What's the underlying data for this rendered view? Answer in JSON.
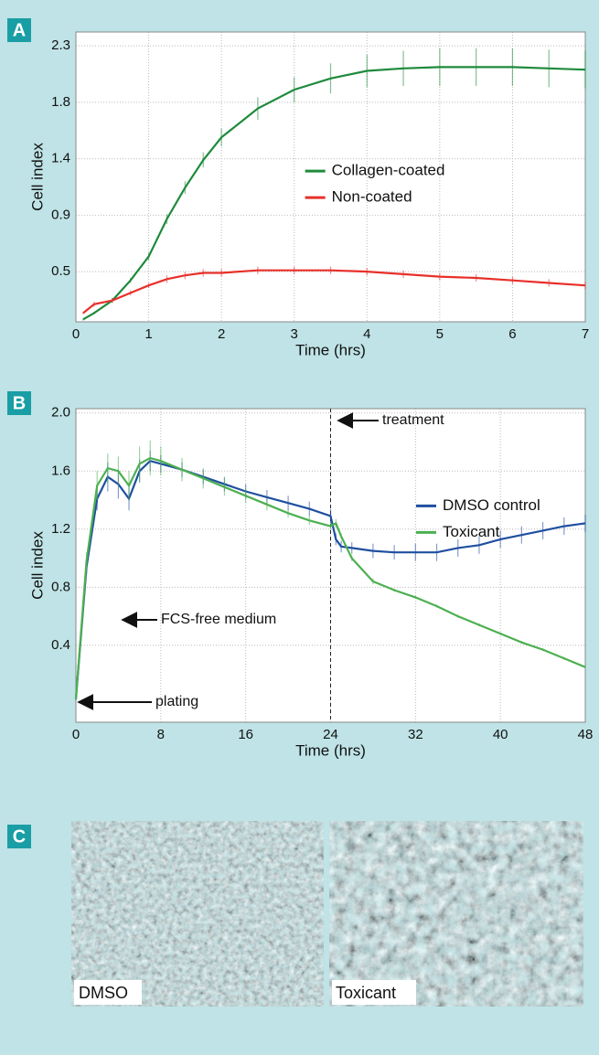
{
  "panel_labels": [
    "A",
    "B",
    "C"
  ],
  "chart_data": [
    {
      "type": "line",
      "x_label": "Time (hrs)",
      "y_label": "Cell index",
      "x": [
        0.1,
        0.25,
        0.5,
        0.75,
        1,
        1.25,
        1.5,
        1.75,
        2,
        2.5,
        3,
        3.5,
        4,
        4.5,
        5,
        5.5,
        6,
        6.5,
        7
      ],
      "series": [
        {
          "name": "Collagen-coated",
          "color": "#1e8a3c",
          "values": [
            0.07,
            0.12,
            0.22,
            0.38,
            0.57,
            0.87,
            1.12,
            1.34,
            1.52,
            1.75,
            1.9,
            1.99,
            2.05,
            2.07,
            2.08,
            2.08,
            2.08,
            2.07,
            2.06
          ],
          "errors": [
            0.01,
            0.01,
            0.02,
            0.02,
            0.03,
            0.04,
            0.05,
            0.06,
            0.07,
            0.09,
            0.1,
            0.12,
            0.13,
            0.14,
            0.15,
            0.15,
            0.15,
            0.15,
            0.15
          ]
        },
        {
          "name": "Non-coated",
          "color": "#e8302a",
          "values": [
            0.12,
            0.19,
            0.22,
            0.28,
            0.34,
            0.39,
            0.42,
            0.44,
            0.44,
            0.46,
            0.46,
            0.46,
            0.45,
            0.43,
            0.41,
            0.4,
            0.38,
            0.36,
            0.34
          ],
          "errors": [
            0.01,
            0.02,
            0.02,
            0.02,
            0.02,
            0.03,
            0.03,
            0.03,
            0.03,
            0.03,
            0.03,
            0.03,
            0.03,
            0.03,
            0.03,
            0.03,
            0.03,
            0.03,
            0.03
          ]
        }
      ],
      "xlim": [
        0,
        7
      ],
      "xticks": [
        0,
        1,
        2,
        3,
        4,
        5,
        6,
        7
      ],
      "ylim": [
        0.05,
        2.36
      ],
      "yticks": [
        {
          "value": 0.45,
          "label": "0.5"
        },
        {
          "value": 0.9,
          "label": "0.9"
        },
        {
          "value": 1.35,
          "label": "1.4"
        },
        {
          "value": 1.8,
          "label": "1.8"
        },
        {
          "value": 2.25,
          "label": "2.3"
        }
      ],
      "grid": true,
      "legend": "center"
    },
    {
      "type": "line",
      "x_label": "Time (hrs)",
      "y_label": "Cell index",
      "x": [
        0,
        1,
        2,
        3,
        4,
        5,
        6,
        7,
        8,
        10,
        12,
        14,
        16,
        18,
        20,
        22,
        24,
        24.5,
        25,
        26,
        28,
        30,
        32,
        34,
        36,
        38,
        40,
        42,
        44,
        46,
        48
      ],
      "series": [
        {
          "name": "DMSO control",
          "color": "#1f4fa0",
          "values": [
            0.03,
            0.94,
            1.41,
            1.56,
            1.51,
            1.41,
            1.6,
            1.67,
            1.65,
            1.61,
            1.56,
            1.51,
            1.46,
            1.42,
            1.38,
            1.34,
            1.29,
            1.13,
            1.08,
            1.07,
            1.05,
            1.04,
            1.04,
            1.04,
            1.07,
            1.09,
            1.13,
            1.16,
            1.19,
            1.22,
            1.24
          ],
          "errors": [
            0.01,
            0.05,
            0.08,
            0.1,
            0.1,
            0.08,
            0.08,
            0.07,
            0.06,
            0.05,
            0.05,
            0.05,
            0.05,
            0.05,
            0.05,
            0.05,
            0.05,
            0.04,
            0.04,
            0.04,
            0.05,
            0.05,
            0.06,
            0.06,
            0.06,
            0.06,
            0.06,
            0.06,
            0.06,
            0.06,
            0.06
          ]
        },
        {
          "name": "Toxicant",
          "color": "#4cb050",
          "values": [
            0.03,
            0.98,
            1.5,
            1.62,
            1.6,
            1.5,
            1.65,
            1.69,
            1.67,
            1.61,
            1.55,
            1.49,
            1.43,
            1.37,
            1.31,
            1.26,
            1.22,
            1.24,
            1.15,
            1.0,
            0.84,
            0.78,
            0.73,
            0.67,
            0.6,
            0.54,
            0.48,
            0.42,
            0.37,
            0.31,
            0.25
          ],
          "errors": [
            0.01,
            0.06,
            0.1,
            0.1,
            0.1,
            0.1,
            0.12,
            0.12,
            0.1,
            0.08,
            0.07,
            0.06,
            0.05,
            0.04,
            0.03,
            0.03,
            0.03,
            0.03,
            0.02,
            0.02,
            0.02,
            0.01,
            0.01,
            0.01,
            0.01,
            0.01,
            0.01,
            0.01,
            0.01,
            0.01,
            0.01
          ]
        }
      ],
      "xlim": [
        0,
        48
      ],
      "xticks": [
        0,
        8,
        16,
        24,
        32,
        40,
        48
      ],
      "ylim": [
        -0.13,
        2.03
      ],
      "yticks": [
        0.4,
        0.8,
        1.2,
        1.6,
        {
          "value": 2,
          "label": "2.0"
        }
      ],
      "grid": true,
      "legend": "right",
      "vline": 24,
      "annotations": [
        "treatment",
        "FCS-free medium",
        "plating"
      ]
    }
  ],
  "images": [
    {
      "label": "DMSO"
    },
    {
      "label": "Toxicant"
    }
  ]
}
